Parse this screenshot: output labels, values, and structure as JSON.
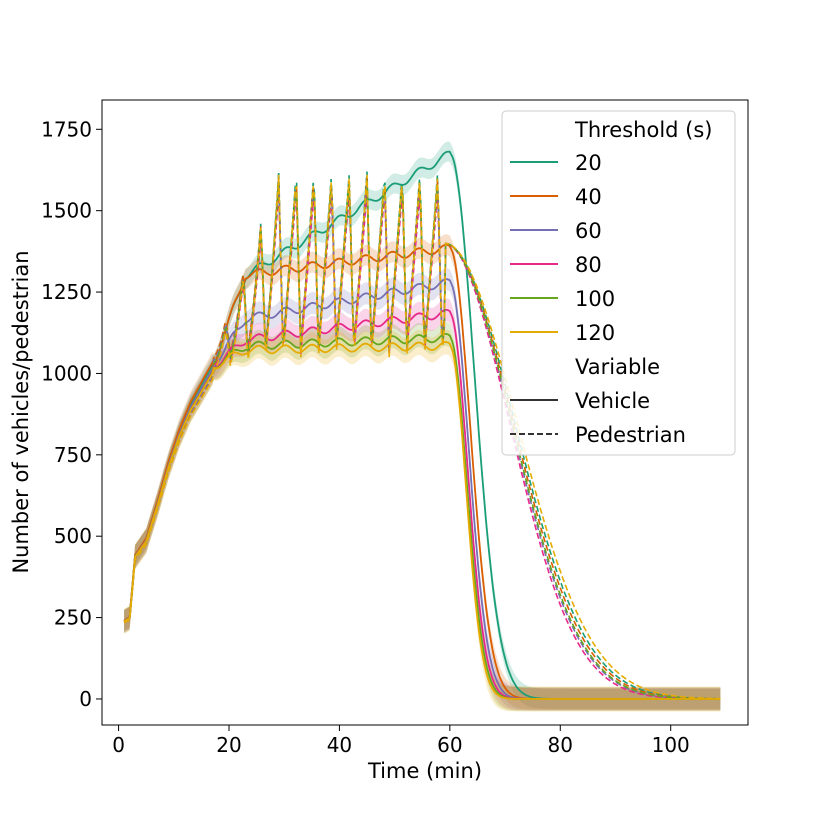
{
  "chart_data": {
    "type": "line",
    "title": "",
    "xlabel": "Time (min)",
    "ylabel": "Number of vehicles/pedestrian",
    "xlim": [
      -3,
      114
    ],
    "ylim": [
      -80,
      1840
    ],
    "x_ticks": [
      0,
      20,
      40,
      60,
      80,
      100
    ],
    "y_ticks": [
      0,
      250,
      500,
      750,
      1000,
      1250,
      1500,
      1750
    ],
    "grid": false,
    "legend_position": "top-right",
    "legend": {
      "hue_title": "Threshold (s)",
      "style_title": "Variable",
      "style_entries": [
        {
          "label": "Vehicle",
          "dash": "solid"
        },
        {
          "label": "Pedestrian",
          "dash": "dashed"
        }
      ]
    },
    "series": [
      {
        "threshold": "20",
        "color": "#1b9e77",
        "plateau_start": 1240,
        "plateau_end": 1675,
        "decay_vehicle": 6.2,
        "ped_low": 1030,
        "ped_high": 1620,
        "ped_decay": 9.5
      },
      {
        "threshold": "40",
        "color": "#d95f02",
        "plateau_start": 1290,
        "plateau_end": 1385,
        "decay_vehicle": 5.2,
        "ped_low": 1050,
        "ped_high": 1600,
        "ped_decay": 9.3
      },
      {
        "threshold": "60",
        "color": "#7570b3",
        "plateau_start": 1150,
        "plateau_end": 1280,
        "decay_vehicle": 4.8,
        "ped_low": 1040,
        "ped_high": 1580,
        "ped_decay": 9.0
      },
      {
        "threshold": "80",
        "color": "#e7298a",
        "plateau_start": 1090,
        "plateau_end": 1185,
        "decay_vehicle": 4.5,
        "ped_low": 1020,
        "ped_high": 1560,
        "ped_decay": 8.8
      },
      {
        "threshold": "100",
        "color": "#66a61e",
        "plateau_start": 1080,
        "plateau_end": 1110,
        "decay_vehicle": 4.3,
        "ped_low": 1030,
        "ped_high": 1590,
        "ped_decay": 9.1
      },
      {
        "threshold": "120",
        "color": "#e6ab02",
        "plateau_start": 1070,
        "plateau_end": 1085,
        "decay_vehicle": 4.1,
        "ped_low": 1010,
        "ped_high": 1610,
        "ped_decay": 9.8
      }
    ]
  }
}
